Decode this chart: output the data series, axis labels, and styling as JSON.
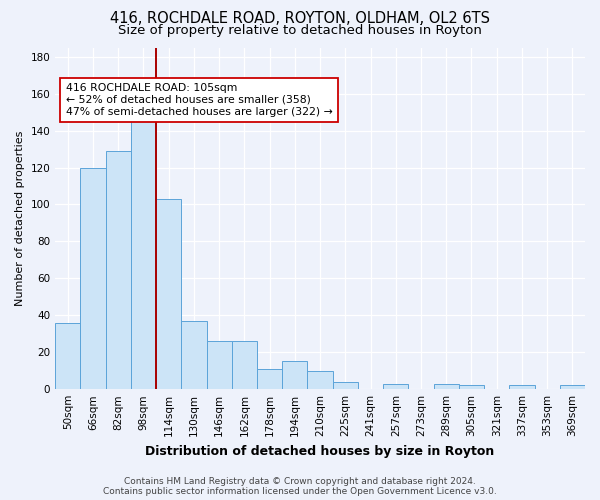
{
  "title": "416, ROCHDALE ROAD, ROYTON, OLDHAM, OL2 6TS",
  "subtitle": "Size of property relative to detached houses in Royton",
  "xlabel": "Distribution of detached houses by size in Royton",
  "ylabel": "Number of detached properties",
  "footer_line1": "Contains HM Land Registry data © Crown copyright and database right 2024.",
  "footer_line2": "Contains public sector information licensed under the Open Government Licence v3.0.",
  "categories": [
    "50sqm",
    "66sqm",
    "82sqm",
    "98sqm",
    "114sqm",
    "130sqm",
    "146sqm",
    "162sqm",
    "178sqm",
    "194sqm",
    "210sqm",
    "225sqm",
    "241sqm",
    "257sqm",
    "273sqm",
    "289sqm",
    "305sqm",
    "321sqm",
    "337sqm",
    "353sqm",
    "369sqm"
  ],
  "values": [
    36,
    120,
    129,
    145,
    103,
    37,
    26,
    26,
    11,
    15,
    10,
    4,
    0,
    3,
    0,
    3,
    2,
    0,
    2,
    0,
    2
  ],
  "bar_color": "#cce4f7",
  "bar_edge_color": "#5ba3d9",
  "vline_x": 3.5,
  "vline_color": "#aa0000",
  "annotation_line1": "416 ROCHDALE ROAD: 105sqm",
  "annotation_line2": "← 52% of detached houses are smaller (358)",
  "annotation_line3": "47% of semi-detached houses are larger (322) →",
  "annotation_box_color": "#ffffff",
  "annotation_box_edge": "#cc0000",
  "ylim": [
    0,
    185
  ],
  "yticks": [
    0,
    20,
    40,
    60,
    80,
    100,
    120,
    140,
    160,
    180
  ],
  "background_color": "#eef2fb",
  "plot_background": "#eef2fb",
  "grid_color": "#ffffff",
  "title_fontsize": 10.5,
  "subtitle_fontsize": 9.5,
  "xlabel_fontsize": 9,
  "ylabel_fontsize": 8,
  "tick_fontsize": 7.5,
  "footer_fontsize": 6.5,
  "ann_fontsize": 7.8
}
